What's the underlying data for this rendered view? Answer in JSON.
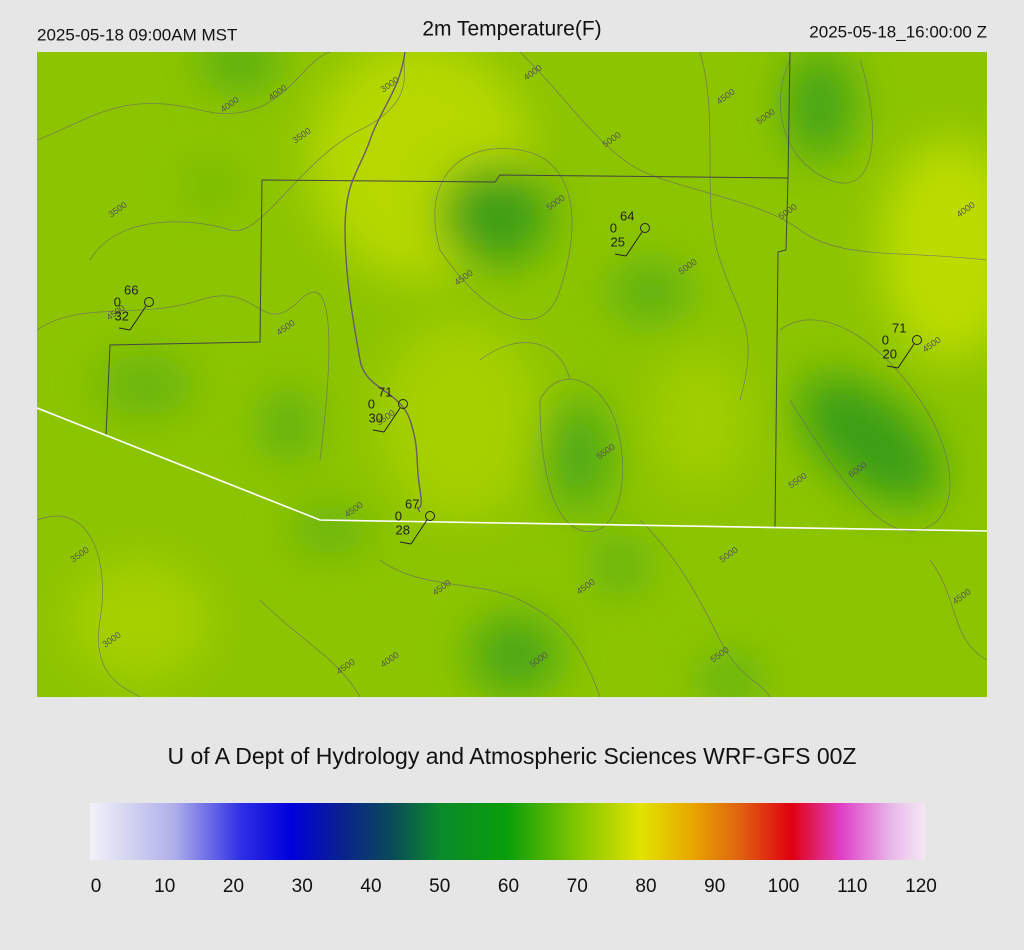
{
  "header": {
    "left": "2025-05-18 09:00AM MST",
    "title": "2m Temperature(F)",
    "right": "2025-05-18_16:00:00 Z"
  },
  "stations": [
    {
      "temperature": 66,
      "wind": 0,
      "dewpoint": 32
    },
    {
      "temperature": 64,
      "wind": 0,
      "dewpoint": 25
    },
    {
      "temperature": 71,
      "wind": 0,
      "dewpoint": 20
    },
    {
      "temperature": 71,
      "wind": 0,
      "dewpoint": 30
    },
    {
      "temperature": 67,
      "wind": 0,
      "dewpoint": 28
    }
  ],
  "contour_labels": [
    4000,
    4000,
    3000,
    4000,
    4500,
    5000,
    3500,
    5000,
    3500,
    5000,
    5000,
    4000,
    5000,
    4500,
    4500,
    4500,
    4500,
    3500,
    5500,
    5500,
    6000,
    4500,
    3500,
    5000,
    4500,
    4500,
    4500,
    3000,
    4000,
    5000,
    4500,
    5500
  ],
  "credit": "U of A Dept of Hydrology and Atmospheric Sciences WRF-GFS 00Z",
  "colorbar": {
    "range": [
      0,
      120
    ],
    "ticks": [
      0,
      10,
      20,
      30,
      40,
      50,
      60,
      70,
      80,
      90,
      100,
      110,
      120
    ]
  }
}
